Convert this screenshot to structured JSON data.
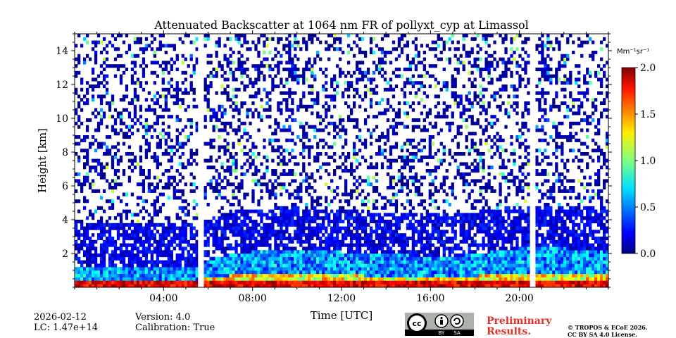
{
  "chart_data": {
    "type": "heatmap",
    "title": "Attenuated Backscatter at 1064 nm FR of pollyxt_cyp at Limassol",
    "xlabel": "Time [UTC]",
    "ylabel": "Height [km]",
    "xlim_hours": [
      0,
      24
    ],
    "ylim_km": [
      0,
      15
    ],
    "x_ticks": [
      {
        "hour": 4,
        "label": "04:00"
      },
      {
        "hour": 8,
        "label": "08:00"
      },
      {
        "hour": 12,
        "label": "12:00"
      },
      {
        "hour": 16,
        "label": "16:00"
      },
      {
        "hour": 20,
        "label": "20:00"
      }
    ],
    "y_ticks": [
      {
        "value": 2,
        "label": "2"
      },
      {
        "value": 4,
        "label": "4"
      },
      {
        "value": 6,
        "label": "6"
      },
      {
        "value": 8,
        "label": "8"
      },
      {
        "value": 10,
        "label": "10"
      },
      {
        "value": 12,
        "label": "12"
      },
      {
        "value": 14,
        "label": "14"
      }
    ],
    "colorbar": {
      "unit_label": "Mm⁻¹sr⁻¹",
      "range": [
        0.0,
        2.0
      ],
      "ticks": [
        {
          "value": 0.0,
          "label": "0.0"
        },
        {
          "value": 0.5,
          "label": "0.5"
        },
        {
          "value": 1.0,
          "label": "1.0"
        },
        {
          "value": 1.5,
          "label": "1.5"
        },
        {
          "value": 2.0,
          "label": "2.0"
        }
      ],
      "colormap": "jet"
    },
    "data_gaps_hours": [
      [
        5.55,
        5.75
      ],
      [
        20.5,
        20.72
      ]
    ],
    "boundary_layer_top_km": [
      {
        "hour": 0,
        "value": 1.2
      },
      {
        "hour": 5.5,
        "value": 1.3
      },
      {
        "hour": 7,
        "value": 2.0
      },
      {
        "hour": 10,
        "value": 2.3
      },
      {
        "hour": 13,
        "value": 2.0
      },
      {
        "hour": 17,
        "value": 1.8
      },
      {
        "hour": 20.5,
        "value": 2.4
      },
      {
        "hour": 24,
        "value": 2.2
      }
    ]
  },
  "info": {
    "date": "2026-02-12",
    "lc": "LC: 1.47e+14",
    "version": "Version: 4.0",
    "calibration": "Calibration: True"
  },
  "license": {
    "cc_text": "cc",
    "by": "BY",
    "sa": "SA",
    "preliminary_line1": "Preliminary",
    "preliminary_line2": "Results.",
    "copyright_line1": "© TROPOS & ECoE 2026.",
    "copyright_line2": "CC BY SA 4.0 License."
  },
  "colors": {
    "preliminary": "#e8302a",
    "background": "#ffffff"
  }
}
